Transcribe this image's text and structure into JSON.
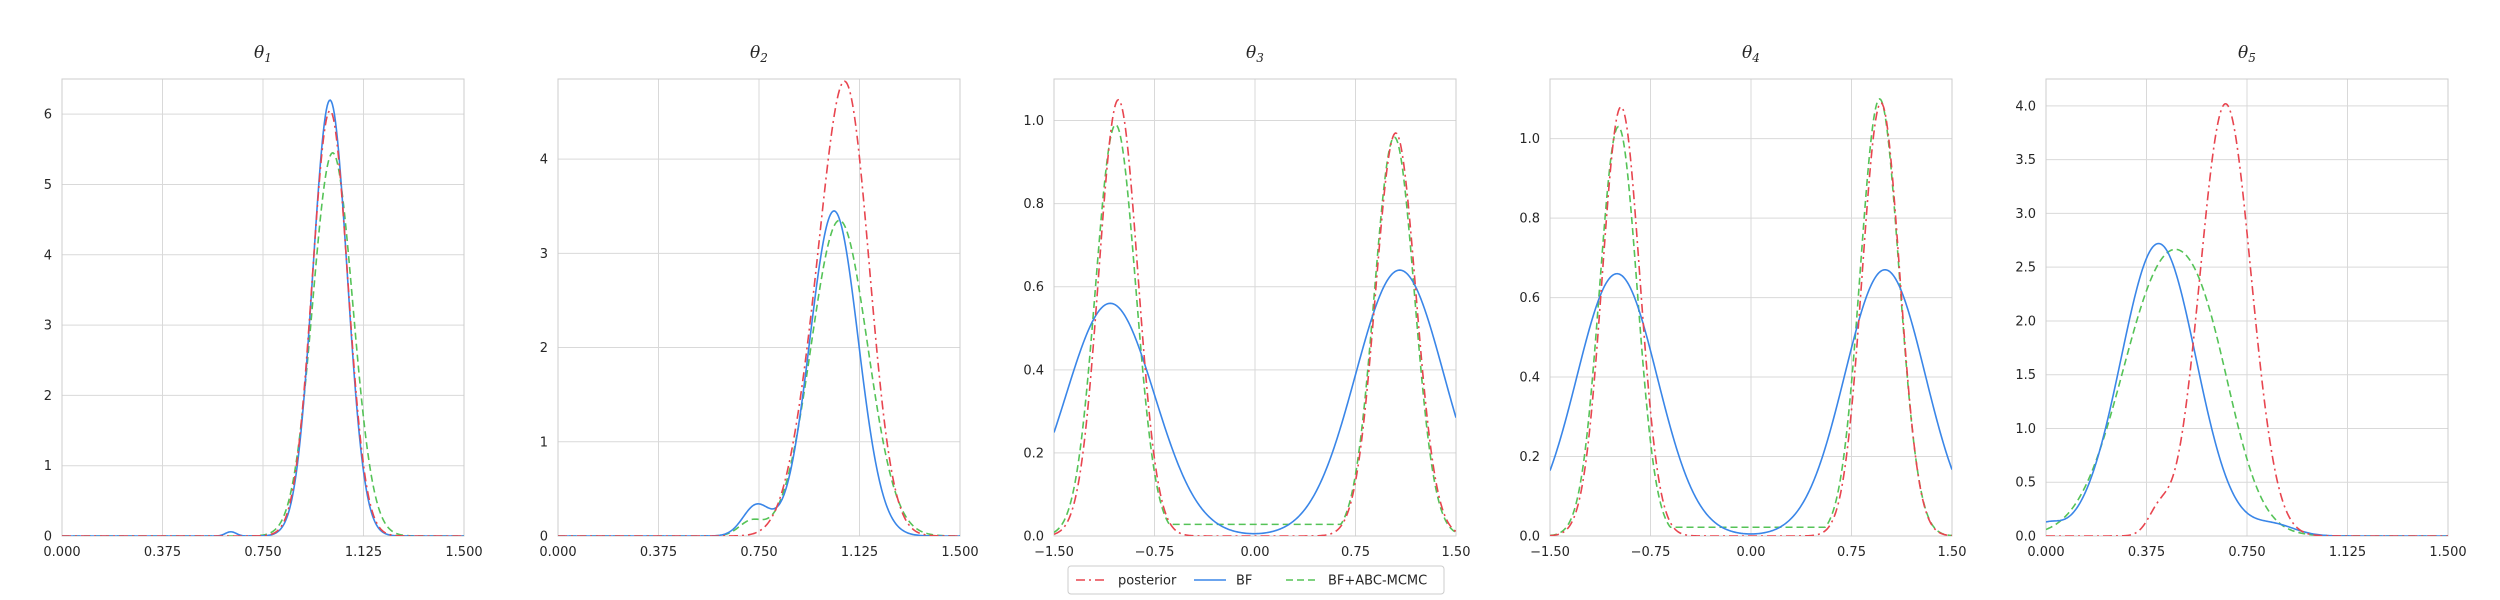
{
  "figure": {
    "legend_location": "bottom-center, below panels"
  },
  "series_styles": [
    {
      "name": "posterior",
      "color": "#e8454f",
      "dash": "dash-dot"
    },
    {
      "name": "BF",
      "color": "#3a86e8",
      "dash": "solid"
    },
    {
      "name": "BF+ABC-MCMC",
      "color": "#55c357",
      "dash": "dashed"
    }
  ],
  "legend": {
    "entries": [
      "posterior",
      "BF",
      "BF+ABC-MCMC"
    ]
  },
  "chart_data": [
    {
      "type": "line",
      "title": "θ1",
      "title_base": "θ",
      "title_sub": "1",
      "xlim": [
        0.0,
        1.5
      ],
      "ylim": [
        0,
        6.5
      ],
      "xticks": [
        "0.000",
        "0.375",
        "0.750",
        "1.125",
        "1.500"
      ],
      "yticks": [
        "0",
        "1",
        "2",
        "3",
        "4",
        "5",
        "6"
      ],
      "grid": true,
      "series": [
        {
          "name": "posterior",
          "components": [
            {
              "mean": 1.0,
              "sd": 0.066,
              "peak": 6.05
            }
          ]
        },
        {
          "name": "BF",
          "components": [
            {
              "mean": 1.0,
              "sd": 0.064,
              "peak": 6.2
            },
            {
              "mean": 0.63,
              "sd": 0.02,
              "peak": 0.06
            }
          ]
        },
        {
          "name": "BF+ABC-MCMC",
          "components": [
            {
              "mean": 1.01,
              "sd": 0.075,
              "peak": 5.45
            }
          ]
        }
      ]
    },
    {
      "type": "line",
      "title": "θ2",
      "title_base": "θ",
      "title_sub": "2",
      "xlim": [
        0.0,
        1.5
      ],
      "ylim": [
        0,
        4.85
      ],
      "xticks": [
        "0.000",
        "0.375",
        "0.750",
        "1.125",
        "1.500"
      ],
      "yticks": [
        "0",
        "1",
        "2",
        "3",
        "4"
      ],
      "grid": true,
      "series": [
        {
          "name": "posterior",
          "components": [
            {
              "mean": 1.08,
              "sd": 0.085,
              "peak": 4.5
            },
            {
              "mean": 0.95,
              "sd": 0.08,
              "peak": 1.1
            }
          ]
        },
        {
          "name": "BF",
          "components": [
            {
              "mean": 1.03,
              "sd": 0.09,
              "peak": 3.45
            },
            {
              "mean": 0.74,
              "sd": 0.05,
              "peak": 0.32
            }
          ]
        },
        {
          "name": "BF+ABC-MCMC",
          "components": [
            {
              "mean": 1.05,
              "sd": 0.105,
              "peak": 3.35
            },
            {
              "mean": 0.72,
              "sd": 0.045,
              "peak": 0.15
            }
          ]
        }
      ]
    },
    {
      "type": "line",
      "title": "θ3",
      "title_base": "θ",
      "title_sub": "3",
      "xlim": [
        -1.5,
        1.5
      ],
      "ylim": [
        0,
        1.1
      ],
      "xticks": [
        "−1.50",
        "−0.75",
        "0.00",
        "0.75",
        "1.50"
      ],
      "yticks": [
        "0.0",
        "0.2",
        "0.4",
        "0.6",
        "0.8",
        "1.0"
      ],
      "grid": true,
      "series": [
        {
          "name": "posterior",
          "components": [
            {
              "mean": -1.02,
              "sd": 0.145,
              "peak": 1.05
            },
            {
              "mean": 1.05,
              "sd": 0.15,
              "peak": 0.97
            }
          ]
        },
        {
          "name": "BF",
          "components": [
            {
              "mean": -1.08,
              "sd": 0.33,
              "peak": 0.56
            },
            {
              "mean": 1.08,
              "sd": 0.33,
              "peak": 0.64
            }
          ]
        },
        {
          "name": "BF+ABC-MCMC",
          "components": [
            {
              "mean": -1.04,
              "sd": 0.15,
              "peak": 0.99
            },
            {
              "mean": 1.04,
              "sd": 0.15,
              "peak": 0.96
            }
          ],
          "baseline": 0.028
        }
      ]
    },
    {
      "type": "line",
      "title": "θ4",
      "title_base": "θ",
      "title_sub": "4",
      "xlim": [
        -1.5,
        1.5
      ],
      "ylim": [
        0,
        1.15
      ],
      "xticks": [
        "−1.50",
        "−0.75",
        "0.00",
        "0.75",
        "1.50"
      ],
      "yticks": [
        "0.0",
        "0.2",
        "0.4",
        "0.6",
        "0.8",
        "1.0"
      ],
      "grid": true,
      "series": [
        {
          "name": "posterior",
          "components": [
            {
              "mean": -0.97,
              "sd": 0.14,
              "peak": 1.08
            },
            {
              "mean": 0.97,
              "sd": 0.14,
              "peak": 1.09
            }
          ]
        },
        {
          "name": "BF",
          "components": [
            {
              "mean": -1.0,
              "sd": 0.3,
              "peak": 0.66
            },
            {
              "mean": 1.0,
              "sd": 0.3,
              "peak": 0.67
            }
          ]
        },
        {
          "name": "BF+ABC-MCMC",
          "components": [
            {
              "mean": -0.99,
              "sd": 0.14,
              "peak": 1.03
            },
            {
              "mean": 0.96,
              "sd": 0.145,
              "peak": 1.1
            }
          ],
          "baseline": 0.022
        }
      ]
    },
    {
      "type": "line",
      "title": "θ5",
      "title_base": "θ",
      "title_sub": "5",
      "xlim": [
        0.0,
        1.5
      ],
      "ylim": [
        0,
        4.25
      ],
      "xticks": [
        "0.000",
        "0.375",
        "0.750",
        "1.125",
        "1.500"
      ],
      "yticks": [
        "0.0",
        "0.5",
        "1.0",
        "1.5",
        "2.0",
        "2.5",
        "3.0",
        "3.5",
        "4.0"
      ],
      "grid": true,
      "series": [
        {
          "name": "posterior",
          "components": [
            {
              "mean": 0.67,
              "sd": 0.095,
              "peak": 4.02
            },
            {
              "mean": 0.42,
              "sd": 0.04,
              "peak": 0.2
            }
          ]
        },
        {
          "name": "BF",
          "components": [
            {
              "mean": 0.42,
              "sd": 0.14,
              "peak": 2.72
            },
            {
              "mean": 0.85,
              "sd": 0.08,
              "peak": 0.1
            },
            {
              "mean": 0.0,
              "sd": 0.05,
              "peak": 0.1
            }
          ]
        },
        {
          "name": "BF+ABC-MCMC",
          "components": [
            {
              "mean": 0.45,
              "sd": 0.165,
              "peak": 2.5
            },
            {
              "mean": 0.62,
              "sd": 0.1,
              "peak": 0.55
            }
          ]
        }
      ]
    }
  ]
}
